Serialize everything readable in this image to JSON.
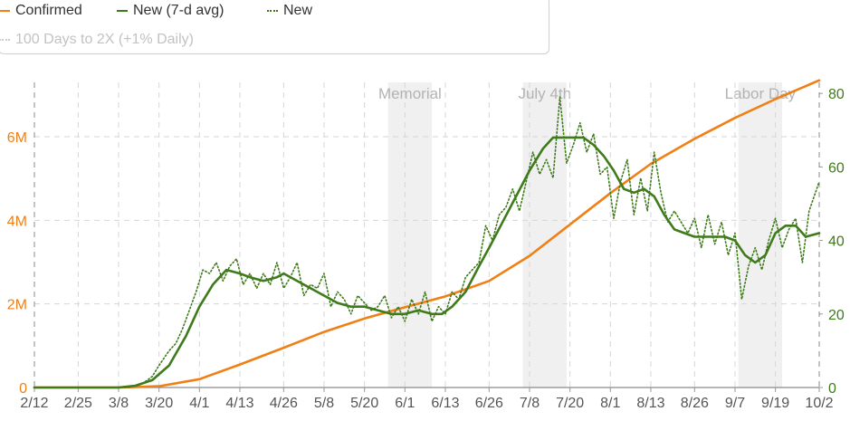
{
  "legend": {
    "items": [
      {
        "label": "Confirmed",
        "style": "solid",
        "color": "#f07f14"
      },
      {
        "label": "New (7-d avg)",
        "style": "solid",
        "color": "#3f7a1b"
      },
      {
        "label": "New",
        "style": "dotted",
        "color": "#3f7a1b"
      },
      {
        "label": "100 Days to 2X (+1% Daily)",
        "style": "dotted",
        "color": "#cccccc"
      }
    ]
  },
  "chart_data": {
    "type": "line",
    "x_tick_labels": [
      "2/12",
      "2/25",
      "3/8",
      "3/20",
      "4/1",
      "4/13",
      "4/26",
      "5/8",
      "5/20",
      "6/1",
      "6/13",
      "6/26",
      "7/8",
      "7/20",
      "8/1",
      "8/13",
      "8/26",
      "9/7",
      "9/19",
      "10/2"
    ],
    "x_tick_days": [
      0,
      13,
      25,
      37,
      49,
      61,
      74,
      86,
      98,
      110,
      122,
      135,
      147,
      159,
      171,
      183,
      196,
      208,
      220,
      233
    ],
    "x_range_days": [
      0,
      233
    ],
    "y_left": {
      "ticks": [
        "0",
        "2M",
        "4M",
        "6M"
      ],
      "tick_values": [
        0,
        2000000,
        4000000,
        6000000
      ],
      "range": [
        0,
        7300000
      ],
      "color": "#f07f14"
    },
    "y_right": {
      "ticks": [
        "0",
        "20",
        "40",
        "60",
        "80"
      ],
      "tick_values": [
        0,
        20,
        40,
        60,
        80
      ],
      "range": [
        0,
        83
      ],
      "color": "#3f7a1b"
    },
    "grid": true,
    "legend_position": "top-left",
    "annotations": [
      {
        "label": "Memorial",
        "start_day": 105,
        "end_day": 118
      },
      {
        "label": "July 4th",
        "start_day": 145,
        "end_day": 158
      },
      {
        "label": "Labor Day",
        "start_day": 209,
        "end_day": 222
      }
    ],
    "series": [
      {
        "name": "Confirmed",
        "axis": "left",
        "color": "#f07f14",
        "style": "solid",
        "points": [
          [
            0,
            0
          ],
          [
            25,
            0
          ],
          [
            37,
            30000
          ],
          [
            49,
            200000
          ],
          [
            61,
            550000
          ],
          [
            74,
            950000
          ],
          [
            86,
            1330000
          ],
          [
            98,
            1650000
          ],
          [
            110,
            1920000
          ],
          [
            122,
            2180000
          ],
          [
            135,
            2550000
          ],
          [
            147,
            3150000
          ],
          [
            159,
            3900000
          ],
          [
            171,
            4650000
          ],
          [
            183,
            5350000
          ],
          [
            196,
            5950000
          ],
          [
            208,
            6450000
          ],
          [
            220,
            6900000
          ],
          [
            233,
            7350000
          ]
        ]
      },
      {
        "name": "New (7-d avg)",
        "axis": "right",
        "color": "#3f7a1b",
        "style": "solid",
        "points": [
          [
            0,
            0
          ],
          [
            25,
            0
          ],
          [
            30,
            0.5
          ],
          [
            35,
            2
          ],
          [
            40,
            6
          ],
          [
            45,
            14
          ],
          [
            49,
            22
          ],
          [
            53,
            28
          ],
          [
            57,
            32
          ],
          [
            61,
            31
          ],
          [
            64,
            30
          ],
          [
            68,
            29
          ],
          [
            72,
            30
          ],
          [
            74,
            31
          ],
          [
            78,
            29
          ],
          [
            82,
            27
          ],
          [
            86,
            25
          ],
          [
            90,
            23
          ],
          [
            94,
            22
          ],
          [
            98,
            22
          ],
          [
            102,
            21
          ],
          [
            106,
            20
          ],
          [
            110,
            20
          ],
          [
            114,
            21
          ],
          [
            118,
            20
          ],
          [
            121,
            20
          ],
          [
            124,
            22
          ],
          [
            128,
            26
          ],
          [
            132,
            33
          ],
          [
            135,
            38
          ],
          [
            139,
            45
          ],
          [
            143,
            52
          ],
          [
            147,
            59
          ],
          [
            151,
            65
          ],
          [
            154,
            68
          ],
          [
            157,
            68
          ],
          [
            160,
            68
          ],
          [
            163,
            68
          ],
          [
            166,
            66
          ],
          [
            169,
            63
          ],
          [
            172,
            59
          ],
          [
            175,
            54
          ],
          [
            178,
            53
          ],
          [
            181,
            54
          ],
          [
            184,
            52
          ],
          [
            187,
            47
          ],
          [
            190,
            43
          ],
          [
            193,
            42
          ],
          [
            196,
            41
          ],
          [
            199,
            41
          ],
          [
            202,
            41
          ],
          [
            205,
            41
          ],
          [
            208,
            40
          ],
          [
            211,
            36
          ],
          [
            214,
            34
          ],
          [
            217,
            36
          ],
          [
            220,
            42
          ],
          [
            223,
            44
          ],
          [
            226,
            44
          ],
          [
            229,
            41
          ],
          [
            233,
            42
          ]
        ]
      },
      {
        "name": "New",
        "axis": "right",
        "color": "#3f7a1b",
        "style": "dotted",
        "points": [
          [
            0,
            0
          ],
          [
            28,
            0
          ],
          [
            32,
            1
          ],
          [
            35,
            3
          ],
          [
            37,
            6
          ],
          [
            40,
            10
          ],
          [
            42,
            12
          ],
          [
            44,
            16
          ],
          [
            46,
            21
          ],
          [
            48,
            26
          ],
          [
            50,
            32
          ],
          [
            52,
            31
          ],
          [
            54,
            34
          ],
          [
            56,
            29
          ],
          [
            58,
            33
          ],
          [
            60,
            35
          ],
          [
            62,
            28
          ],
          [
            64,
            31
          ],
          [
            66,
            27
          ],
          [
            68,
            31
          ],
          [
            70,
            28
          ],
          [
            72,
            34
          ],
          [
            74,
            27
          ],
          [
            76,
            30
          ],
          [
            78,
            34
          ],
          [
            80,
            25
          ],
          [
            82,
            28
          ],
          [
            84,
            27
          ],
          [
            86,
            31
          ],
          [
            88,
            22
          ],
          [
            90,
            26
          ],
          [
            92,
            24
          ],
          [
            94,
            20
          ],
          [
            96,
            25
          ],
          [
            98,
            23
          ],
          [
            100,
            21
          ],
          [
            102,
            22
          ],
          [
            104,
            25
          ],
          [
            106,
            19
          ],
          [
            108,
            22
          ],
          [
            110,
            18
          ],
          [
            112,
            24
          ],
          [
            114,
            20
          ],
          [
            116,
            26
          ],
          [
            118,
            18
          ],
          [
            120,
            22
          ],
          [
            122,
            20
          ],
          [
            124,
            26
          ],
          [
            126,
            24
          ],
          [
            128,
            30
          ],
          [
            130,
            32
          ],
          [
            132,
            34
          ],
          [
            134,
            44
          ],
          [
            136,
            40
          ],
          [
            138,
            47
          ],
          [
            140,
            49
          ],
          [
            142,
            54
          ],
          [
            144,
            48
          ],
          [
            146,
            56
          ],
          [
            148,
            64
          ],
          [
            150,
            58
          ],
          [
            152,
            62
          ],
          [
            154,
            57
          ],
          [
            156,
            79
          ],
          [
            158,
            61
          ],
          [
            160,
            66
          ],
          [
            162,
            72
          ],
          [
            164,
            64
          ],
          [
            166,
            69
          ],
          [
            168,
            58
          ],
          [
            170,
            60
          ],
          [
            172,
            46
          ],
          [
            174,
            56
          ],
          [
            176,
            62
          ],
          [
            178,
            47
          ],
          [
            180,
            57
          ],
          [
            182,
            48
          ],
          [
            184,
            64
          ],
          [
            186,
            53
          ],
          [
            188,
            45
          ],
          [
            190,
            48
          ],
          [
            192,
            45
          ],
          [
            194,
            42
          ],
          [
            196,
            46
          ],
          [
            198,
            38
          ],
          [
            200,
            47
          ],
          [
            202,
            39
          ],
          [
            204,
            45
          ],
          [
            206,
            36
          ],
          [
            208,
            42
          ],
          [
            210,
            24
          ],
          [
            212,
            33
          ],
          [
            214,
            38
          ],
          [
            216,
            32
          ],
          [
            218,
            40
          ],
          [
            220,
            46
          ],
          [
            222,
            38
          ],
          [
            224,
            43
          ],
          [
            226,
            46
          ],
          [
            228,
            34
          ],
          [
            230,
            48
          ],
          [
            233,
            56
          ]
        ]
      },
      {
        "name": "100 Days to 2X (+1% Daily)",
        "axis": "right",
        "color": "#cccccc",
        "style": "dotted",
        "points": []
      }
    ]
  }
}
